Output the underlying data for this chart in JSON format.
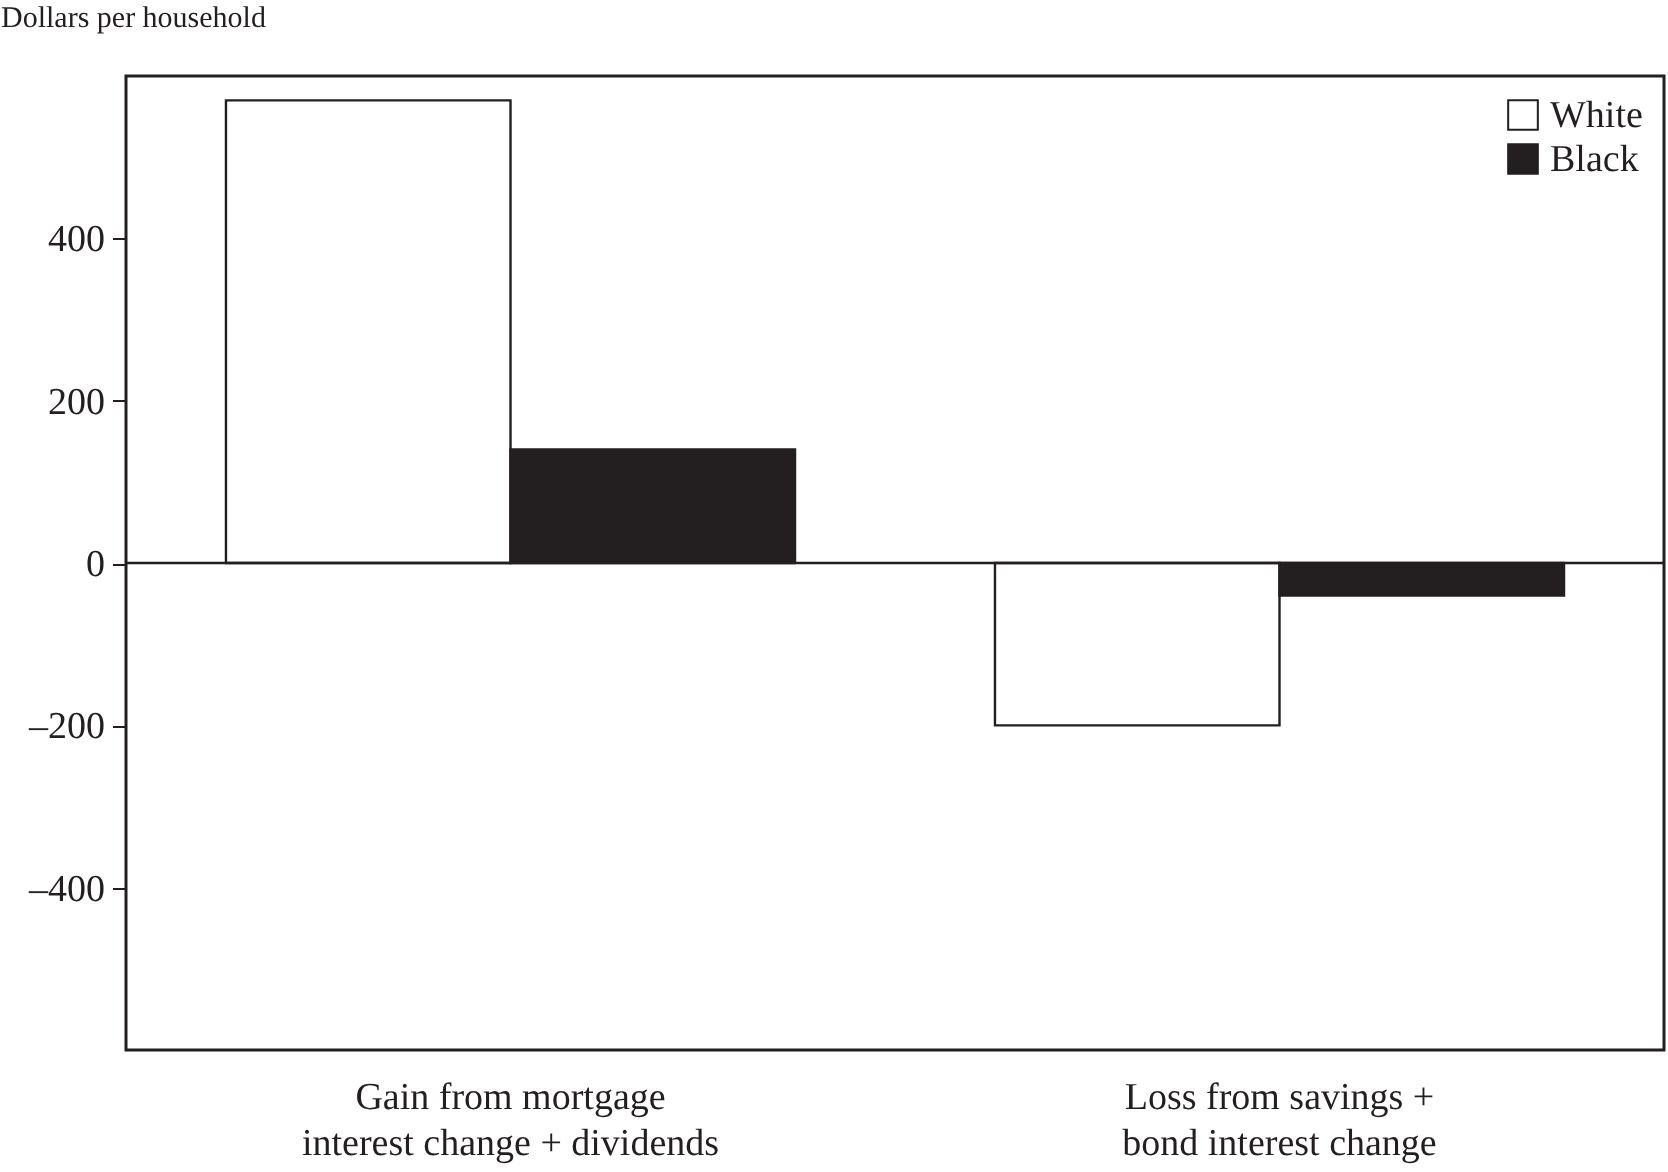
{
  "chart_data": {
    "type": "bar",
    "ylabel": "Dollars per household",
    "categories": [
      "Gain from mortgage\ninterest change + dividends",
      "Loss from savings +\nbond interest change"
    ],
    "series": [
      {
        "name": "White",
        "color": "#ffffff",
        "values": [
          570,
          -200
        ]
      },
      {
        "name": "Black",
        "color": "#231f20",
        "values": [
          140,
          -40
        ]
      }
    ],
    "ylim": [
      -600,
      600
    ],
    "yticks": [
      {
        "value": -400,
        "label": "–400"
      },
      {
        "value": -200,
        "label": "–200"
      },
      0,
      200,
      400
    ],
    "legend": "top right"
  }
}
